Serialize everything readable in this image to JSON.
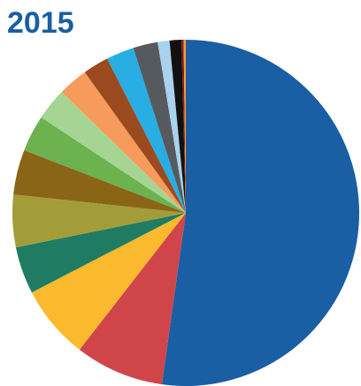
{
  "chart_data": {
    "type": "pie",
    "title": "2015",
    "values": [
      52.2,
      8.3,
      6.9,
      4.4,
      4.9,
      4.2,
      3.4,
      3.0,
      2.8,
      2.4,
      2.6,
      2.3,
      1.1,
      1.1,
      0.2,
      0.2
    ],
    "colors": [
      "#1a5ea3",
      "#d0454a",
      "#fbb92d",
      "#1f7c63",
      "#a39d39",
      "#8b6516",
      "#6cb24f",
      "#a6d593",
      "#f79b5d",
      "#9b4a1f",
      "#28aee3",
      "#565a5f",
      "#a9d2ee",
      "#111111",
      "#8b1a1a",
      "#f0a030"
    ]
  }
}
